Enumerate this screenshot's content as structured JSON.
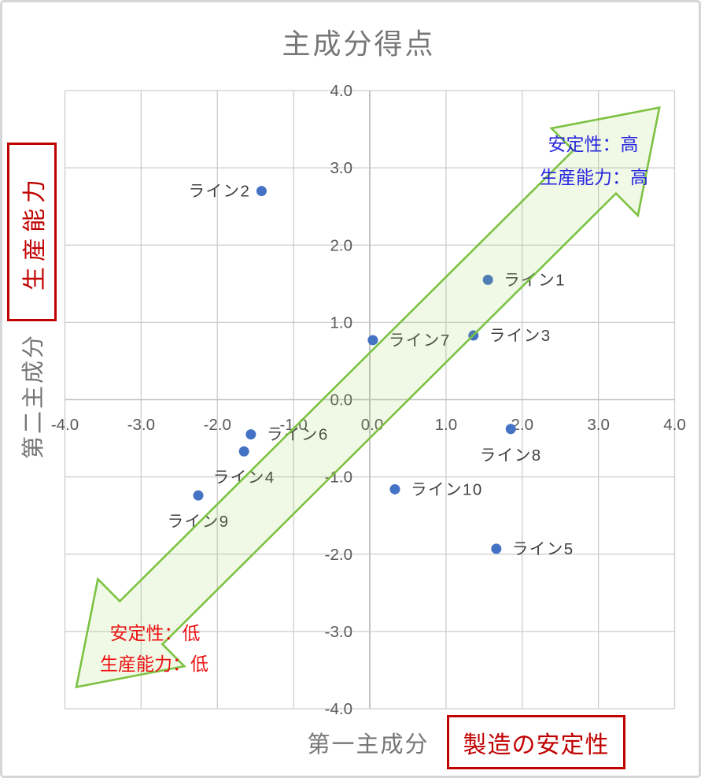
{
  "chart": {
    "title": "主成分得点",
    "x_axis_title": "第一主成分",
    "y_axis_title": "第二主成分"
  },
  "annotations": {
    "left_box_label": "生産能力",
    "bottom_box_label": "製造の安定性",
    "high_note_line1": "安定性：高",
    "high_note_line2": "生産能力：高",
    "low_note_line1": "安定性：低",
    "low_note_line2": "生産能力：低"
  },
  "colors": {
    "point": "#4472C4",
    "point_label": "#404040",
    "tick_label": "#595959",
    "grid": "#CDCDCD",
    "axis_x0": "#B3B3B3",
    "axis_y0": "#C2C2C2",
    "arrow_stroke": "#7CC242",
    "arrow_fill": "rgba(146,208,80,0.14)",
    "deep_red": "#C00000",
    "note_red": "#EE1111",
    "note_blue": "#2727DE",
    "title_grey": "#767676"
  },
  "chart_data": {
    "type": "scatter",
    "title": "主成分得点",
    "xlabel": "第一主成分",
    "ylabel": "第二主成分",
    "xlim": [
      -4.0,
      4.0
    ],
    "ylim": [
      -4.0,
      4.0
    ],
    "grid": true,
    "x_ticks": [
      -4.0,
      -3.0,
      -2.0,
      -1.0,
      0.0,
      1.0,
      2.0,
      3.0,
      4.0
    ],
    "y_ticks": [
      4.0,
      3.0,
      2.0,
      1.0,
      0.0,
      -1.0,
      -2.0,
      -3.0,
      -4.0
    ],
    "tick_format": "one_decimal",
    "points": [
      {
        "label": "ライン1",
        "x": 1.55,
        "y": 1.55,
        "label_side": "right"
      },
      {
        "label": "ライン2",
        "x": -1.42,
        "y": 2.7,
        "label_side": "left"
      },
      {
        "label": "ライン3",
        "x": 1.36,
        "y": 0.83,
        "label_side": "right"
      },
      {
        "label": "ライン4",
        "x": -1.65,
        "y": -0.67,
        "label_side": "below"
      },
      {
        "label": "ライン5",
        "x": 1.66,
        "y": -1.93,
        "label_side": "right"
      },
      {
        "label": "ライン6",
        "x": -1.56,
        "y": -0.45,
        "label_side": "right"
      },
      {
        "label": "ライン7",
        "x": 0.04,
        "y": 0.77,
        "label_side": "right"
      },
      {
        "label": "ライン8",
        "x": 1.85,
        "y": -0.38,
        "label_side": "below"
      },
      {
        "label": "ライン9",
        "x": -2.25,
        "y": -1.24,
        "label_side": "below"
      },
      {
        "label": "ライン10",
        "x": 0.33,
        "y": -1.16,
        "label_side": "right"
      }
    ],
    "arrow": {
      "from": [
        -3.85,
        -3.72
      ],
      "to": [
        3.8,
        3.78
      ],
      "high_end_note": [
        "安定性：高",
        "生産能力：高"
      ],
      "low_end_note": [
        "安定性：低",
        "生産能力：低"
      ]
    }
  }
}
